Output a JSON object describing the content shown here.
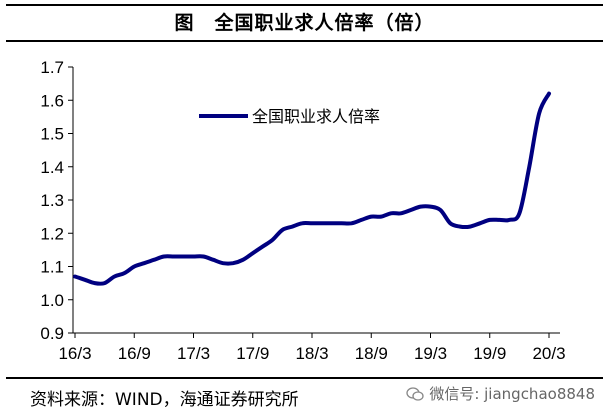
{
  "header": {
    "title": "图　全国职业求人倍率（倍）"
  },
  "footer": {
    "source": "资料来源：WIND，海通证券研究所",
    "watermark": "微信号: jiangchao8848"
  },
  "colors": {
    "series": "#000080",
    "axis": "#000000",
    "text": "#000000"
  },
  "chart_data": {
    "type": "line",
    "title": "全国职业求人倍率（倍）",
    "xlabel": "",
    "ylabel": "",
    "ylim": [
      0.9,
      1.7
    ],
    "yticks": [
      0.9,
      1.0,
      1.1,
      1.2,
      1.3,
      1.4,
      1.5,
      1.6,
      1.7
    ],
    "ytick_labels": [
      "0.9",
      "1.0",
      "1.1",
      "1.2",
      "1.3",
      "1.4",
      "1.5",
      "1.6",
      "1.7"
    ],
    "xtick_labels": [
      "16/3",
      "16/9",
      "17/3",
      "17/9",
      "18/3",
      "18/9",
      "19/3",
      "19/9",
      "20/3"
    ],
    "grid": false,
    "legend_position": "upper-center",
    "series": [
      {
        "name": "全国职业求人倍率",
        "x": [
          "2016-03",
          "2016-04",
          "2016-05",
          "2016-06",
          "2016-07",
          "2016-08",
          "2016-09",
          "2016-10",
          "2016-11",
          "2016-12",
          "2017-01",
          "2017-02",
          "2017-03",
          "2017-04",
          "2017-05",
          "2017-06",
          "2017-07",
          "2017-08",
          "2017-09",
          "2017-10",
          "2017-11",
          "2017-12",
          "2018-01",
          "2018-02",
          "2018-03",
          "2018-04",
          "2018-05",
          "2018-06",
          "2018-07",
          "2018-08",
          "2018-09",
          "2018-10",
          "2018-11",
          "2018-12",
          "2019-01",
          "2019-02",
          "2019-03",
          "2019-04",
          "2019-05",
          "2019-06",
          "2019-07",
          "2019-08",
          "2019-09",
          "2019-10",
          "2019-11",
          "2019-12",
          "2020-01",
          "2020-02",
          "2020-03"
        ],
        "values": [
          1.07,
          1.06,
          1.05,
          1.05,
          1.07,
          1.08,
          1.1,
          1.11,
          1.12,
          1.13,
          1.13,
          1.13,
          1.13,
          1.13,
          1.12,
          1.11,
          1.11,
          1.12,
          1.14,
          1.16,
          1.18,
          1.21,
          1.22,
          1.23,
          1.23,
          1.23,
          1.23,
          1.23,
          1.23,
          1.24,
          1.25,
          1.25,
          1.26,
          1.26,
          1.27,
          1.28,
          1.28,
          1.27,
          1.23,
          1.22,
          1.22,
          1.23,
          1.24,
          1.24,
          1.24,
          1.26,
          1.4,
          1.56,
          1.62
        ]
      }
    ]
  }
}
